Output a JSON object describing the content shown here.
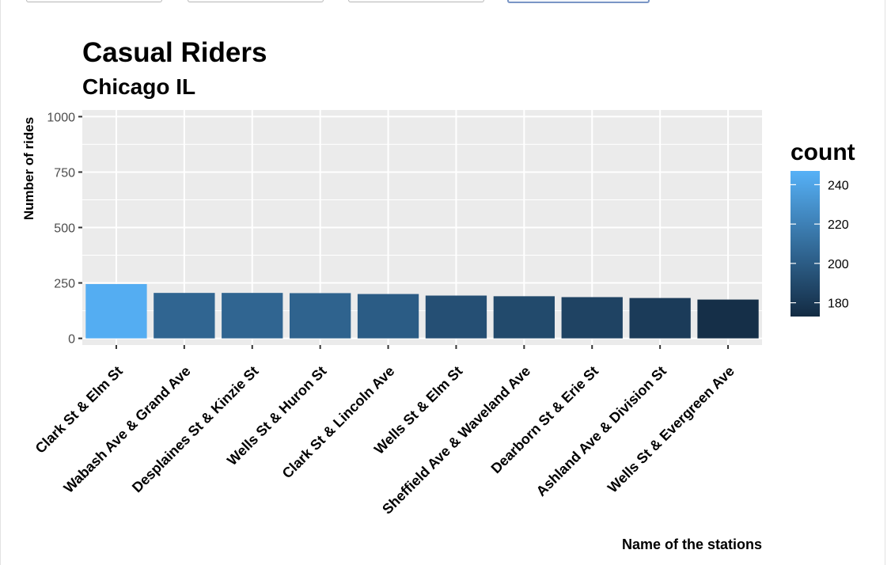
{
  "tabs": [
    {
      "active": false
    },
    {
      "active": false
    },
    {
      "active": false
    },
    {
      "active": true
    }
  ],
  "chart_data": {
    "type": "bar",
    "title": "Casual Riders",
    "subtitle": "Chicago IL",
    "xlabel": "Name of the stations",
    "ylabel": "Number of rides",
    "ylim": [
      -30,
      1030
    ],
    "yticks": [
      0,
      250,
      500,
      750,
      1000
    ],
    "categories": [
      "Clark St & Elm St",
      "Wabash Ave & Grand Ave",
      "Desplaines St & Kinzie St",
      "Wells St & Huron St",
      "Clark St & Lincoln Ave",
      "Wells St & Elm St",
      "Sheffield Ave & Waveland Ave",
      "Dearborn St & Erie St",
      "Ashland Ave & Division St",
      "Wells St & Evergreen Ave"
    ],
    "values": [
      245,
      205,
      205,
      204,
      200,
      193,
      190,
      186,
      182,
      175
    ],
    "grid": true,
    "legend": {
      "title": "count",
      "position": "right",
      "ticks": [
        180,
        200,
        220,
        240
      ],
      "range": [
        173,
        247
      ],
      "color_low": "#132b43",
      "color_high": "#56b1f7"
    },
    "panel_color": "#ebebeb"
  }
}
